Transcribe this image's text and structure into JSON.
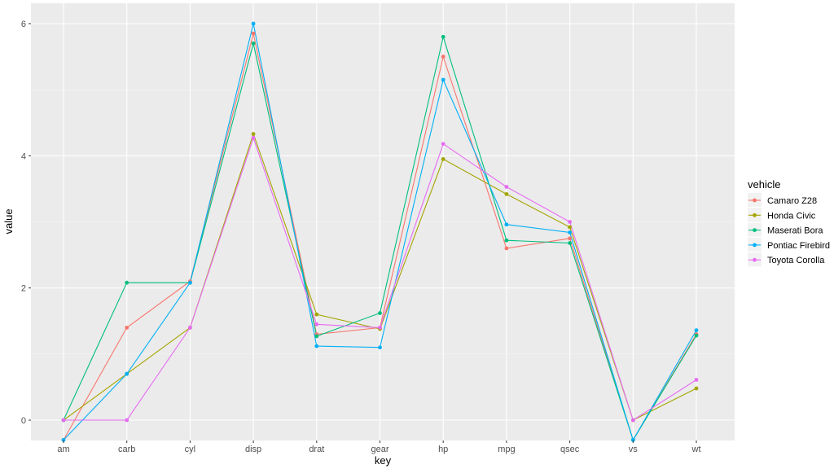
{
  "chart_data": {
    "type": "line",
    "xlabel": "key",
    "ylabel": "value",
    "categories": [
      "am",
      "carb",
      "cyl",
      "disp",
      "drat",
      "gear",
      "hp",
      "mpg",
      "qsec",
      "vs",
      "wt"
    ],
    "y_ticks": [
      0,
      2,
      4,
      6
    ],
    "ylim": [
      -0.3,
      6.1
    ],
    "grid": true,
    "legend": {
      "title": "vehicle",
      "position": "right"
    },
    "series": [
      {
        "name": "Camaro Z28",
        "color": "#F8766D",
        "values": [
          -0.3,
          1.4,
          2.1,
          5.85,
          1.3,
          1.4,
          5.5,
          2.6,
          2.75,
          -0.3,
          1.3
        ]
      },
      {
        "name": "Honda Civic",
        "color": "#A3A500",
        "values": [
          0.0,
          0.7,
          1.4,
          4.33,
          1.6,
          1.38,
          3.95,
          3.42,
          2.92,
          0.0,
          0.48
        ]
      },
      {
        "name": "Maserati Bora",
        "color": "#00BF7D",
        "values": [
          0.0,
          2.08,
          2.08,
          5.7,
          1.27,
          1.62,
          5.8,
          2.72,
          2.68,
          -0.3,
          1.28
        ]
      },
      {
        "name": "Pontiac Firebird",
        "color": "#00B0F6",
        "values": [
          -0.3,
          0.7,
          2.08,
          6.0,
          1.12,
          1.1,
          5.15,
          2.96,
          2.84,
          -0.3,
          1.36
        ]
      },
      {
        "name": "Toyota Corolla",
        "color": "#E76BF3",
        "values": [
          0.0,
          0.0,
          1.4,
          4.27,
          1.45,
          1.4,
          4.18,
          3.53,
          3.0,
          0.0,
          0.61
        ]
      }
    ]
  }
}
